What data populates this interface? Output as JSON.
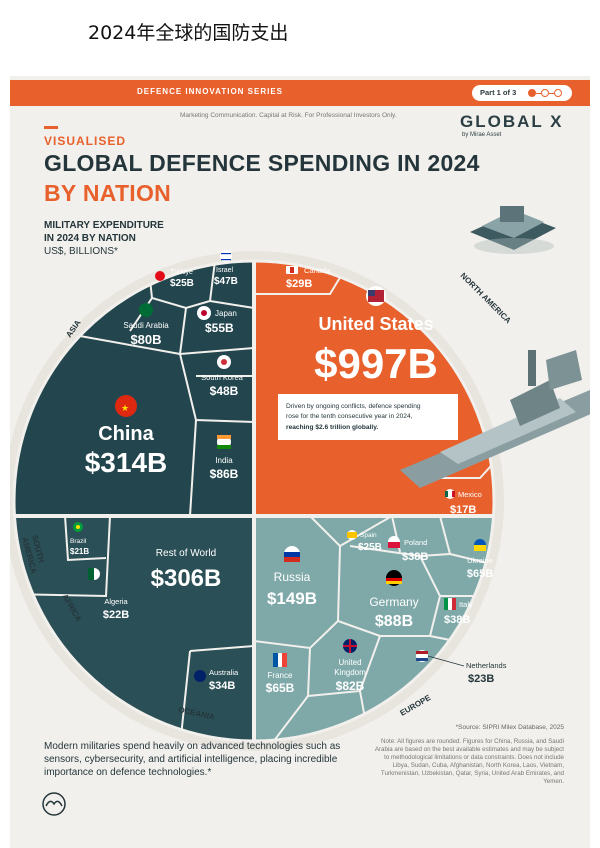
{
  "caption": "2024年全球的国防支出",
  "header": {
    "series": "DEFENCE INNOVATION SERIES",
    "part": "Part 1 of 3",
    "disclaimer": "Marketing Communication. Capital at Risk. For Professional Investors Only.",
    "brand": "GLOBAL X",
    "brand_sub": "by Mirae Asset"
  },
  "title": {
    "kicker": "VISUALISED",
    "line1": "GLOBAL DEFENCE SPENDING IN 2024",
    "line2": "BY NATION"
  },
  "subtitle": {
    "line1": "MILITARY EXPENDITURE",
    "line2": "IN 2024 BY NATION",
    "line3": "US$, BILLIONS*"
  },
  "regions": {
    "asia": "ASIA",
    "north_america": "NORTH AMERICA",
    "south_america_1": "SOUTH",
    "south_america_2": "AMERICA",
    "africa": "AFRICA",
    "oceania": "OCEANIA",
    "europe": "EUROPE"
  },
  "chart_data": {
    "type": "voronoi-treemap",
    "title": "GLOBAL DEFENCE SPENDING IN 2024 BY NATION",
    "unit": "US$, billions",
    "regions": [
      {
        "name": "North America",
        "color": "#e8602c",
        "countries": [
          {
            "name": "United States",
            "label": "$997B",
            "value": 997
          },
          {
            "name": "Canada",
            "label": "$29B",
            "value": 29
          },
          {
            "name": "Mexico",
            "label": "$17B",
            "value": 17
          }
        ]
      },
      {
        "name": "Asia",
        "color": "#23464e",
        "countries": [
          {
            "name": "China",
            "label": "$314B",
            "value": 314
          },
          {
            "name": "India",
            "label": "$86B",
            "value": 86
          },
          {
            "name": "Saudi Arabia",
            "label": "$80B",
            "value": 80
          },
          {
            "name": "Japan",
            "label": "$55B",
            "value": 55
          },
          {
            "name": "South Korea",
            "label": "$48B",
            "value": 48
          },
          {
            "name": "Israel",
            "label": "$47B",
            "value": 47
          },
          {
            "name": "Türkiye",
            "label": "$25B",
            "value": 25
          }
        ]
      },
      {
        "name": "Rest of World",
        "color": "#2b4f56",
        "countries": [
          {
            "name": "Rest of World",
            "label": "$306B",
            "value": 306
          },
          {
            "name": "Algeria",
            "label": "$22B",
            "value": 22
          },
          {
            "name": "Brazil",
            "label": "$21B",
            "value": 21
          },
          {
            "name": "Australia",
            "label": "$34B",
            "value": 34
          }
        ]
      },
      {
        "name": "Europe",
        "color": "#7fa9a9",
        "countries": [
          {
            "name": "Russia",
            "label": "$149B",
            "value": 149
          },
          {
            "name": "Germany",
            "label": "$88B",
            "value": 88
          },
          {
            "name": "United Kingdom",
            "label": "$82B",
            "value": 82
          },
          {
            "name": "France",
            "label": "$65B",
            "value": 65
          },
          {
            "name": "Ukraine",
            "label": "$65B",
            "value": 65
          },
          {
            "name": "Poland",
            "label": "$38B",
            "value": 38
          },
          {
            "name": "Italy",
            "label": "$38B",
            "value": 38
          },
          {
            "name": "Spain",
            "label": "$25B",
            "value": 25
          },
          {
            "name": "Netherlands",
            "label": "$23B",
            "value": 23
          }
        ]
      }
    ]
  },
  "labels": {
    "us_name": "United States",
    "us_value": "$997B",
    "us_note1": "Driven by ongoing conflicts, defence spending",
    "us_note2": "rose for the tenth consecutive year in 2024,",
    "us_note3": "reaching $2.6 trillion globally.",
    "canada_name": "Canada",
    "canada_value": "$29B",
    "mexico_name": "Mexico",
    "mexico_value": "$17B",
    "china_name": "China",
    "china_value": "$314B",
    "india_name": "India",
    "india_value": "$86B",
    "saudi_name": "Saudi Arabia",
    "saudi_value": "$80B",
    "japan_name": "Japan",
    "japan_value": "$55B",
    "korea_name": "South Korea",
    "korea_value": "$48B",
    "israel_name": "Israel",
    "israel_value": "$47B",
    "turkiye_name": "Türkiye",
    "turkiye_value": "$25B",
    "row_name": "Rest of World",
    "row_value": "$306B",
    "algeria_name": "Algeria",
    "algeria_value": "$22B",
    "brazil_name": "Brazil",
    "brazil_value": "$21B",
    "australia_name": "Australia",
    "australia_value": "$34B",
    "russia_name": "Russia",
    "russia_value": "$149B",
    "germany_name": "Germany",
    "germany_value": "$88B",
    "uk_name1": "United",
    "uk_name2": "Kingdom",
    "uk_value": "$82B",
    "france_name": "France",
    "france_value": "$65B",
    "ukraine_name": "Ukraine",
    "ukraine_value": "$65B",
    "poland_name": "Poland",
    "poland_value": "$38B",
    "italy_name": "Italy",
    "italy_value": "$38B",
    "spain_name": "Spain",
    "spain_value": "$25B",
    "netherlands_name": "Netherlands",
    "netherlands_value": "$23B"
  },
  "footer": {
    "text": "Modern militaries spend heavily on advanced technologies such as sensors, cybersecurity, and artificial intelligence, placing incredible importance on defence technologies.*",
    "source": "*Source: SIPRI Milex Database, 2025",
    "notes": "Note: All figures are rounded. Figures for China, Russia, and Saudi Arabia are based on the best available estimates and may be subject to methodological limitations or data constraints. Does not include Libya, Sudan, Cuba, Afghanistan, North Korea, Laos, Vietnam, Turkmenistan, Uzbekistan, Qatar, Syria, United Arab Emirates, and Yemen."
  },
  "colors": {
    "orange": "#e8602c",
    "dark_teal": "#23464e",
    "mid_teal": "#2b4f56",
    "light_teal": "#7fa9a9",
    "text_dark": "#24363b"
  }
}
